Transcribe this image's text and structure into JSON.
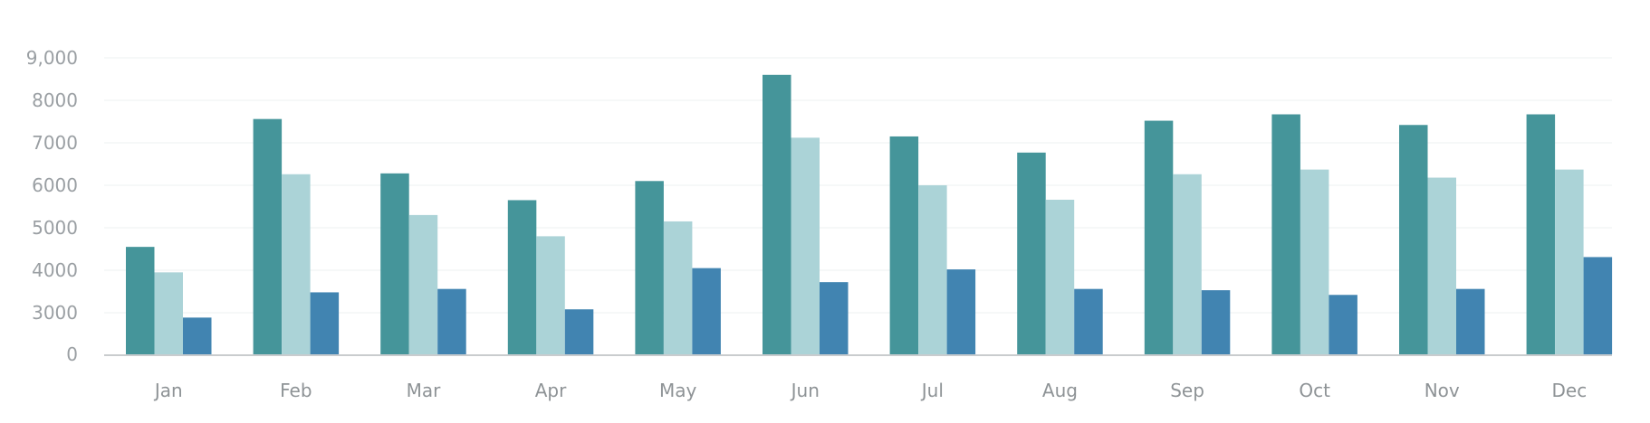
{
  "chart_data": {
    "type": "bar",
    "title": "",
    "xlabel": "",
    "ylabel": "",
    "categories": [
      "Jan",
      "Feb",
      "Mar",
      "Apr",
      "May",
      "Jun",
      "Jul",
      "Aug",
      "Sep",
      "Oct",
      "Nov",
      "Dec"
    ],
    "y_ticks": [
      {
        "value": 0,
        "label": "0"
      },
      {
        "value": 3000,
        "label": "3000"
      },
      {
        "value": 4000,
        "label": "4000"
      },
      {
        "value": 5000,
        "label": "5000"
      },
      {
        "value": 6000,
        "label": "6000"
      },
      {
        "value": 7000,
        "label": "7000"
      },
      {
        "value": 8000,
        "label": "8000"
      },
      {
        "value": 9000,
        "label": "9,000"
      }
    ],
    "series": [
      {
        "color": "#45959a",
        "values": [
          4550,
          7560,
          6280,
          5650,
          6100,
          8600,
          7150,
          6770,
          7520,
          7670,
          7420,
          7670
        ]
      },
      {
        "color": "#abd3d7",
        "values": [
          3950,
          6260,
          5300,
          4800,
          5150,
          7120,
          6000,
          5660,
          6260,
          6370,
          6180,
          6370
        ]
      },
      {
        "color": "#4184b1",
        "values": [
          2650,
          3480,
          3560,
          3080,
          4050,
          3720,
          4020,
          3560,
          3530,
          3420,
          3560,
          4310
        ]
      }
    ],
    "grid": true,
    "legend": "none"
  }
}
